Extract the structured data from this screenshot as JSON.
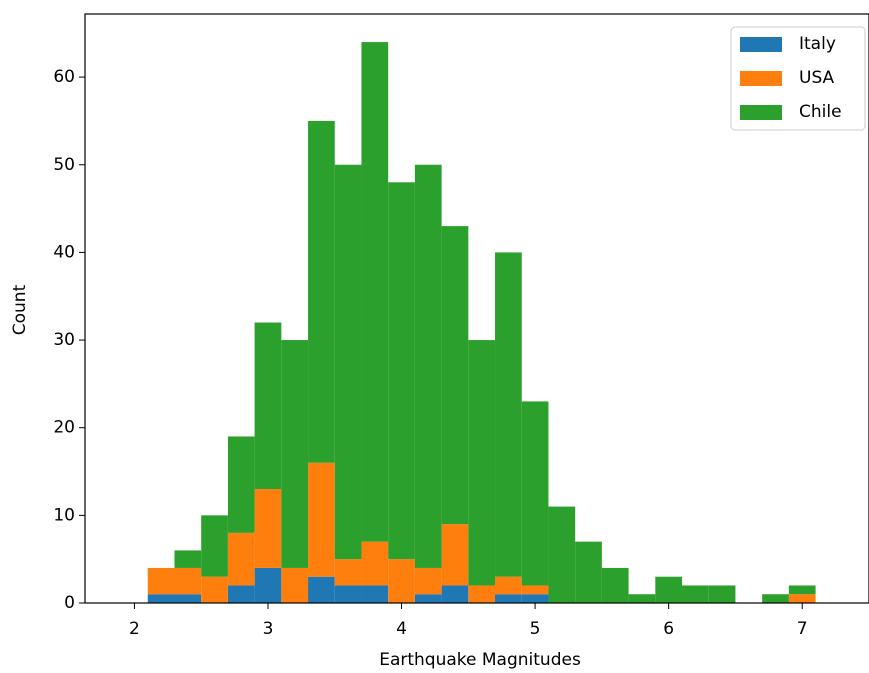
{
  "chart_data": {
    "type": "histogram",
    "stacked": true,
    "xlabel": "Earthquake Magnitudes",
    "ylabel": "Count",
    "bins": [
      2.1,
      2.3,
      2.5,
      2.7,
      2.9,
      3.1,
      3.3,
      3.5,
      3.7,
      3.9,
      4.1,
      4.3,
      4.5,
      4.7,
      4.9,
      5.1,
      5.3,
      5.5,
      5.7,
      5.9,
      6.1,
      6.3,
      6.5,
      6.7,
      6.9,
      7.1
    ],
    "series": [
      {
        "name": "Italy",
        "color": "#1f77b4",
        "values": [
          1,
          1,
          0,
          2,
          4,
          0,
          3,
          2,
          2,
          0,
          1,
          2,
          0,
          1,
          1,
          0,
          0,
          0,
          0,
          0,
          0,
          0,
          0,
          0,
          0
        ]
      },
      {
        "name": "USA",
        "color": "#ff7f0e",
        "values": [
          3,
          3,
          3,
          6,
          9,
          4,
          13,
          3,
          5,
          5,
          3,
          7,
          2,
          2,
          1,
          0,
          0,
          0,
          0,
          0,
          0,
          0,
          0,
          0,
          1
        ]
      },
      {
        "name": "Chile",
        "color": "#2ca02c",
        "values": [
          0,
          2,
          7,
          11,
          19,
          26,
          39,
          45,
          57,
          43,
          46,
          34,
          28,
          37,
          21,
          11,
          7,
          4,
          1,
          3,
          2,
          2,
          0,
          1,
          1
        ]
      }
    ],
    "xlim": [
      1.63,
      7.5
    ],
    "xticks": [
      2,
      3,
      4,
      5,
      6,
      7
    ],
    "ylim": [
      0,
      67.2
    ],
    "yticks": [
      0,
      10,
      20,
      30,
      40,
      50,
      60
    ],
    "legend": "upper right"
  }
}
